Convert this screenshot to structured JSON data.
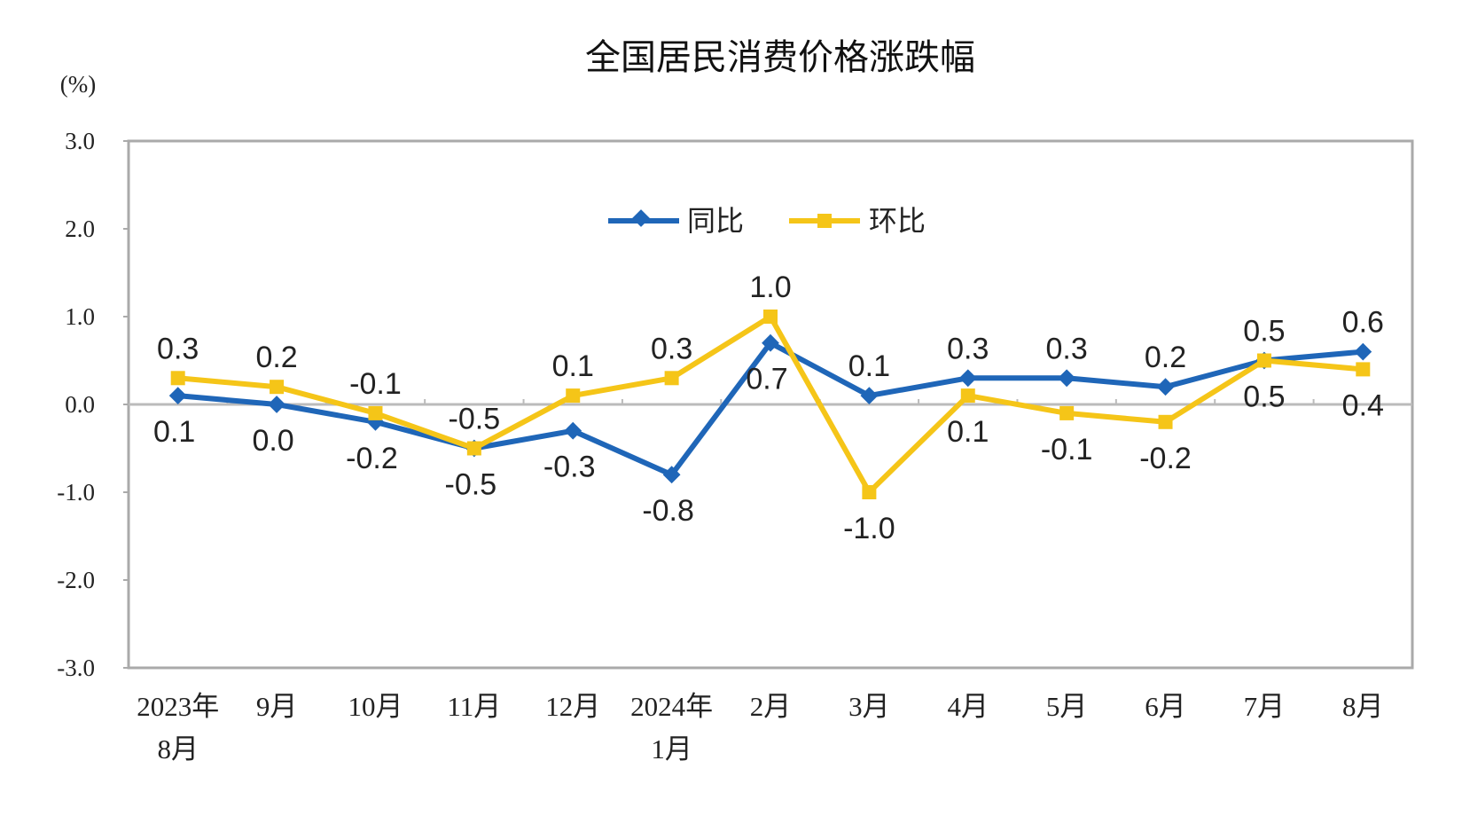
{
  "chart_data": {
    "type": "line",
    "title": "全国居民消费价格涨跌幅",
    "ylabel": "(%)",
    "xlabel": "",
    "ylim": [
      -3.0,
      3.0
    ],
    "yticks": [
      "3.0",
      "2.0",
      "1.0",
      "0.0",
      "-1.0",
      "-2.0",
      "-3.0"
    ],
    "categories": [
      [
        "2023年",
        "8月"
      ],
      [
        "9月"
      ],
      [
        "10月"
      ],
      [
        "11月"
      ],
      [
        "12月"
      ],
      [
        "2024年",
        "1月"
      ],
      [
        "2月"
      ],
      [
        "3月"
      ],
      [
        "4月"
      ],
      [
        "5月"
      ],
      [
        "6月"
      ],
      [
        "7月"
      ],
      [
        "8月"
      ]
    ],
    "legend_position": "top-center",
    "grid": false,
    "series": [
      {
        "name": "同比",
        "color": "#1f66b8",
        "marker": "diamond",
        "values": [
          0.1,
          0.0,
          -0.2,
          -0.5,
          -0.3,
          -0.8,
          0.7,
          0.1,
          0.3,
          0.3,
          0.2,
          0.5,
          0.6
        ],
        "labels": [
          "0.1",
          "0.0",
          "-0.2",
          "-0.5",
          "-0.3",
          "-0.8",
          "0.7",
          "0.1",
          "0.3",
          "0.3",
          "0.2",
          "0.5",
          "0.6"
        ]
      },
      {
        "name": "环比",
        "color": "#f5c518",
        "marker": "square",
        "values": [
          0.3,
          0.2,
          -0.1,
          -0.5,
          0.1,
          0.3,
          1.0,
          -1.0,
          0.1,
          -0.1,
          -0.2,
          0.5,
          0.4
        ],
        "labels": [
          "0.3",
          "0.2",
          "-0.1",
          "-0.5",
          "0.1",
          "0.3",
          "1.0",
          "-1.0",
          "0.1",
          "-0.1",
          "-0.2",
          "0.5",
          "0.4"
        ]
      }
    ]
  }
}
